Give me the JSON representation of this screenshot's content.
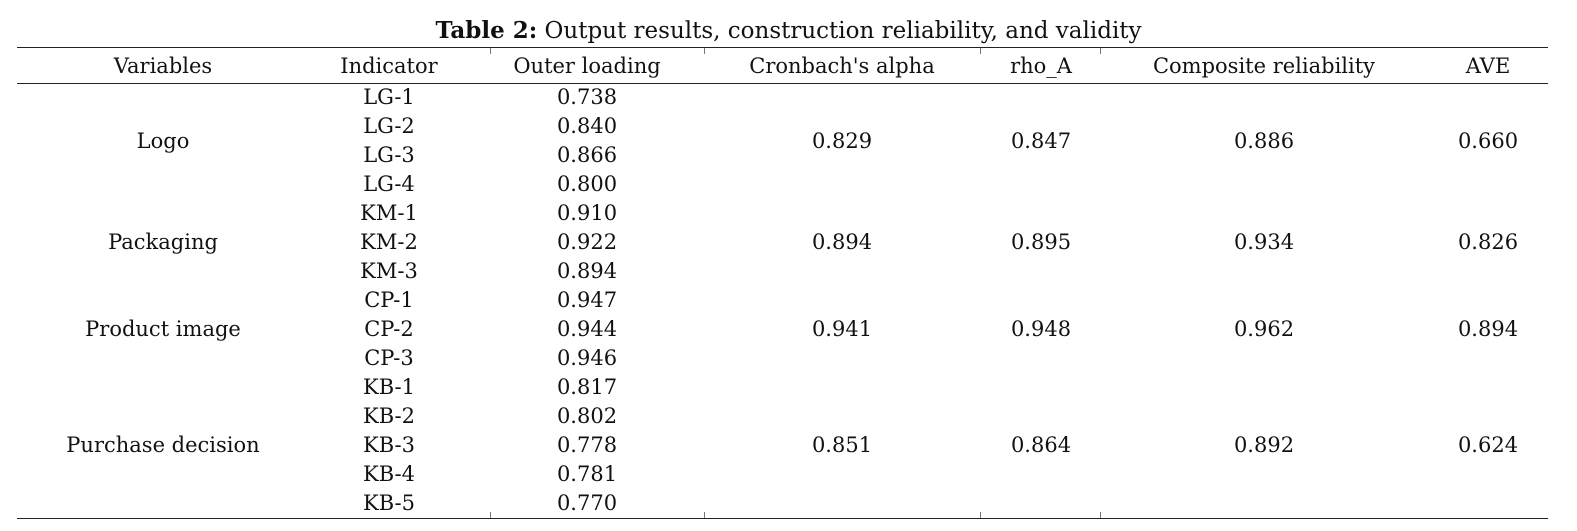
{
  "caption": {
    "label": "Table 2:",
    "text": " Output results, construction reliability, and validity"
  },
  "table": {
    "headers": [
      "Variables",
      "Indicator",
      "Outer loading",
      "Cronbach's alpha",
      "rho_A",
      "Composite reliability",
      "AVE"
    ],
    "groups": [
      {
        "variable": "Logo",
        "indicators": [
          "LG-1",
          "LG-2",
          "LG-3",
          "LG-4"
        ],
        "loadings": [
          "0.738",
          "0.840",
          "0.866",
          "0.800"
        ],
        "cronbach_alpha": "0.829",
        "rho_a": "0.847",
        "composite_reliability": "0.886",
        "ave": "0.660"
      },
      {
        "variable": "Packaging",
        "indicators": [
          "KM-1",
          "KM-2",
          "KM-3"
        ],
        "loadings": [
          "0.910",
          "0.922",
          "0.894"
        ],
        "cronbach_alpha": "0.894",
        "rho_a": "0.895",
        "composite_reliability": "0.934",
        "ave": "0.826"
      },
      {
        "variable": "Product image",
        "indicators": [
          "CP-1",
          "CP-2",
          "CP-3"
        ],
        "loadings": [
          "0.947",
          "0.944",
          "0.946"
        ],
        "cronbach_alpha": "0.941",
        "rho_a": "0.948",
        "composite_reliability": "0.962",
        "ave": "0.894"
      },
      {
        "variable": "Purchase decision",
        "indicators": [
          "KB-1",
          "KB-2",
          "KB-3",
          "KB-4",
          "KB-5"
        ],
        "loadings": [
          "0.817",
          "0.802",
          "0.778",
          "0.781",
          "0.770"
        ],
        "cronbach_alpha": "0.851",
        "rho_a": "0.864",
        "composite_reliability": "0.892",
        "ave": "0.624"
      }
    ]
  }
}
